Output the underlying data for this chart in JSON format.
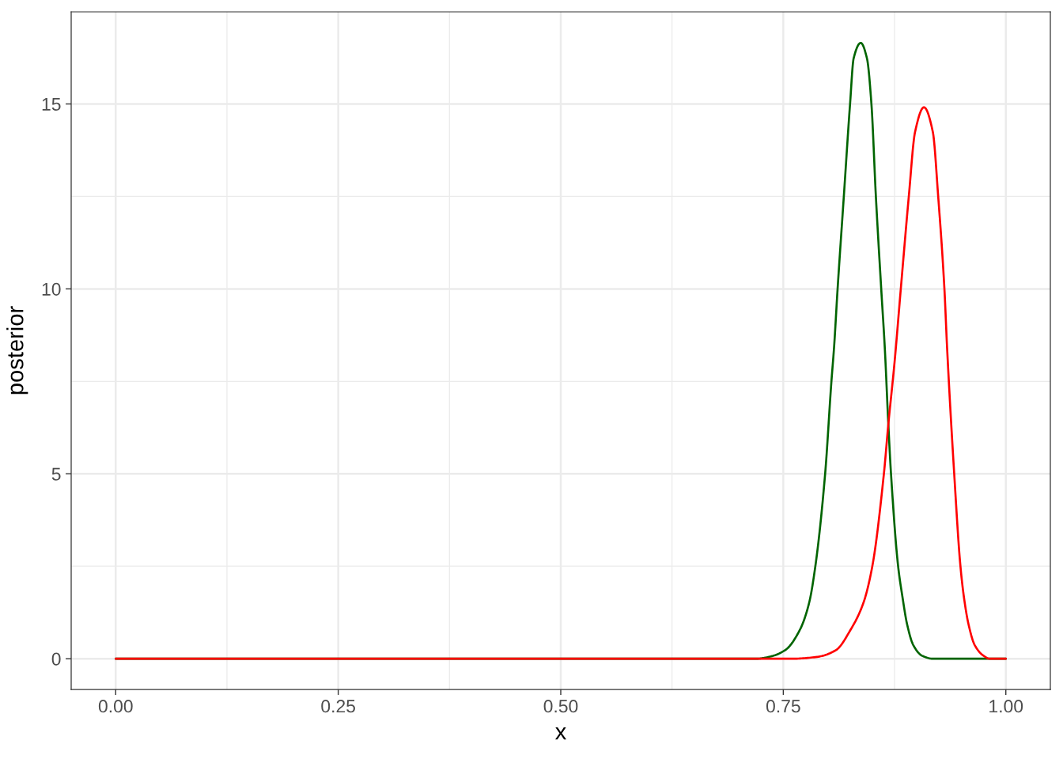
{
  "chart_data": {
    "type": "line",
    "xlabel": "x",
    "ylabel": "posterior",
    "series": [
      {
        "color": "#006400",
        "x": [
          0,
          0.7,
          0.72,
          0.734,
          0.752,
          0.769,
          0.779,
          0.786,
          0.797,
          0.804,
          0.807,
          0.811,
          0.818,
          0.825,
          0.829,
          0.837,
          0.844,
          0.849,
          0.854,
          0.86,
          0.864,
          0.868,
          0.871,
          0.879,
          0.884,
          0.889,
          0.896,
          0.906,
          0.918,
          1.0
        ],
        "values": [
          0,
          0,
          0,
          0.05,
          0.23,
          0.8,
          1.51,
          2.5,
          5.0,
          7.48,
          8.41,
          10.0,
          12.5,
          15.0,
          16.23,
          16.65,
          16.23,
          15.0,
          12.5,
          10.0,
          8.41,
          6.34,
          5.0,
          2.5,
          1.65,
          0.94,
          0.37,
          0.08,
          0,
          0
        ]
      },
      {
        "color": "#ff0000",
        "x": [
          0,
          0.76,
          0.788,
          0.809,
          0.826,
          0.84,
          0.85,
          0.863,
          0.868,
          0.875,
          0.882,
          0.891,
          0.898,
          0.908,
          0.918,
          0.924,
          0.931,
          0.934,
          0.942,
          0.949,
          0.953,
          0.958,
          0.965,
          0.975,
          0.982,
          1.0
        ],
        "values": [
          0,
          0,
          0.05,
          0.23,
          0.8,
          1.51,
          2.5,
          5.0,
          6.34,
          8.02,
          10.0,
          12.5,
          14.24,
          14.91,
          14.24,
          12.5,
          10.0,
          8.41,
          5.0,
          2.5,
          1.65,
          0.94,
          0.37,
          0.08,
          0,
          0
        ]
      }
    ],
    "xlim": [
      -0.05,
      1.05
    ],
    "ylim": [
      -0.83,
      17.49
    ],
    "xticks": [
      {
        "value": 0,
        "label": "0.00"
      },
      {
        "value": 0.25,
        "label": "0.25"
      },
      {
        "value": 0.5,
        "label": "0.50"
      },
      {
        "value": 0.75,
        "label": "0.75"
      },
      {
        "value": 1,
        "label": "1.00"
      }
    ],
    "yticks": [
      0,
      5,
      10,
      15
    ],
    "grid": true,
    "line_style": "solid"
  }
}
